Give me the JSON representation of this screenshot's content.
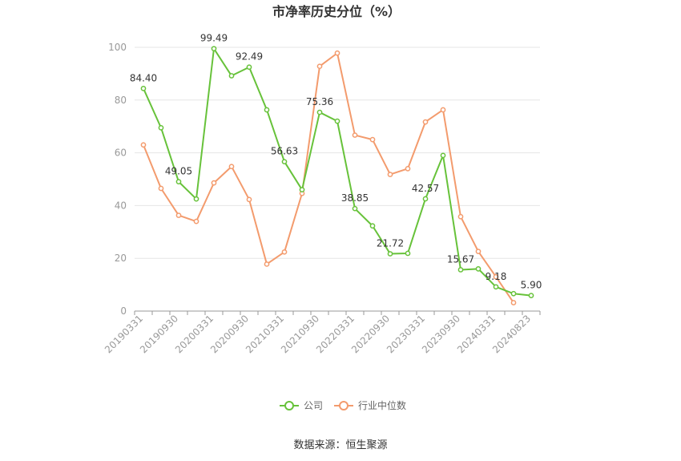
{
  "chart_data": {
    "type": "line",
    "title": "市净率历史分位（%）",
    "source": "数据来源：恒生聚源",
    "ylim": [
      0,
      100
    ],
    "yticks": [
      0,
      20,
      40,
      60,
      80,
      100
    ],
    "grid": true,
    "legend_position": "bottom-center",
    "x_tick_labels": [
      "20190331",
      "20190930",
      "20200331",
      "20200930",
      "20210331",
      "20210930",
      "20220331",
      "20220930",
      "20230331",
      "20230930",
      "20240331",
      "20240823"
    ],
    "x": [
      "20190331",
      "20190630",
      "20190930",
      "20191231",
      "20200331",
      "20200630",
      "20200930",
      "20201231",
      "20210331",
      "20210630",
      "20210930",
      "20211231",
      "20220331",
      "20220630",
      "20220930",
      "20221231",
      "20230331",
      "20230630",
      "20230930",
      "20231231",
      "20240331",
      "20240630",
      "20240823"
    ],
    "series": [
      {
        "name": "公司",
        "color": "#67c23a",
        "values": [
          84.4,
          69.5,
          49.05,
          42.5,
          99.49,
          89.2,
          92.49,
          76.3,
          56.63,
          46.0,
          75.36,
          72.0,
          38.85,
          32.3,
          21.72,
          21.9,
          42.57,
          59.0,
          15.67,
          16.0,
          9.18,
          6.6,
          5.9
        ],
        "labels": [
          "84.40",
          null,
          "49.05",
          null,
          "99.49",
          null,
          "92.49",
          null,
          "56.63",
          null,
          "75.36",
          null,
          "38.85",
          null,
          "21.72",
          null,
          "42.57",
          null,
          "15.67",
          null,
          "9.18",
          null,
          "5.90"
        ]
      },
      {
        "name": "行业中位数",
        "color": "#f39b6d",
        "values": [
          63.0,
          46.5,
          36.3,
          34.0,
          48.6,
          54.8,
          42.3,
          17.8,
          22.4,
          44.6,
          92.8,
          97.8,
          66.7,
          65.0,
          51.8,
          54.0,
          71.7,
          76.3,
          35.8,
          22.6,
          13.0,
          3.2,
          null
        ]
      }
    ]
  }
}
